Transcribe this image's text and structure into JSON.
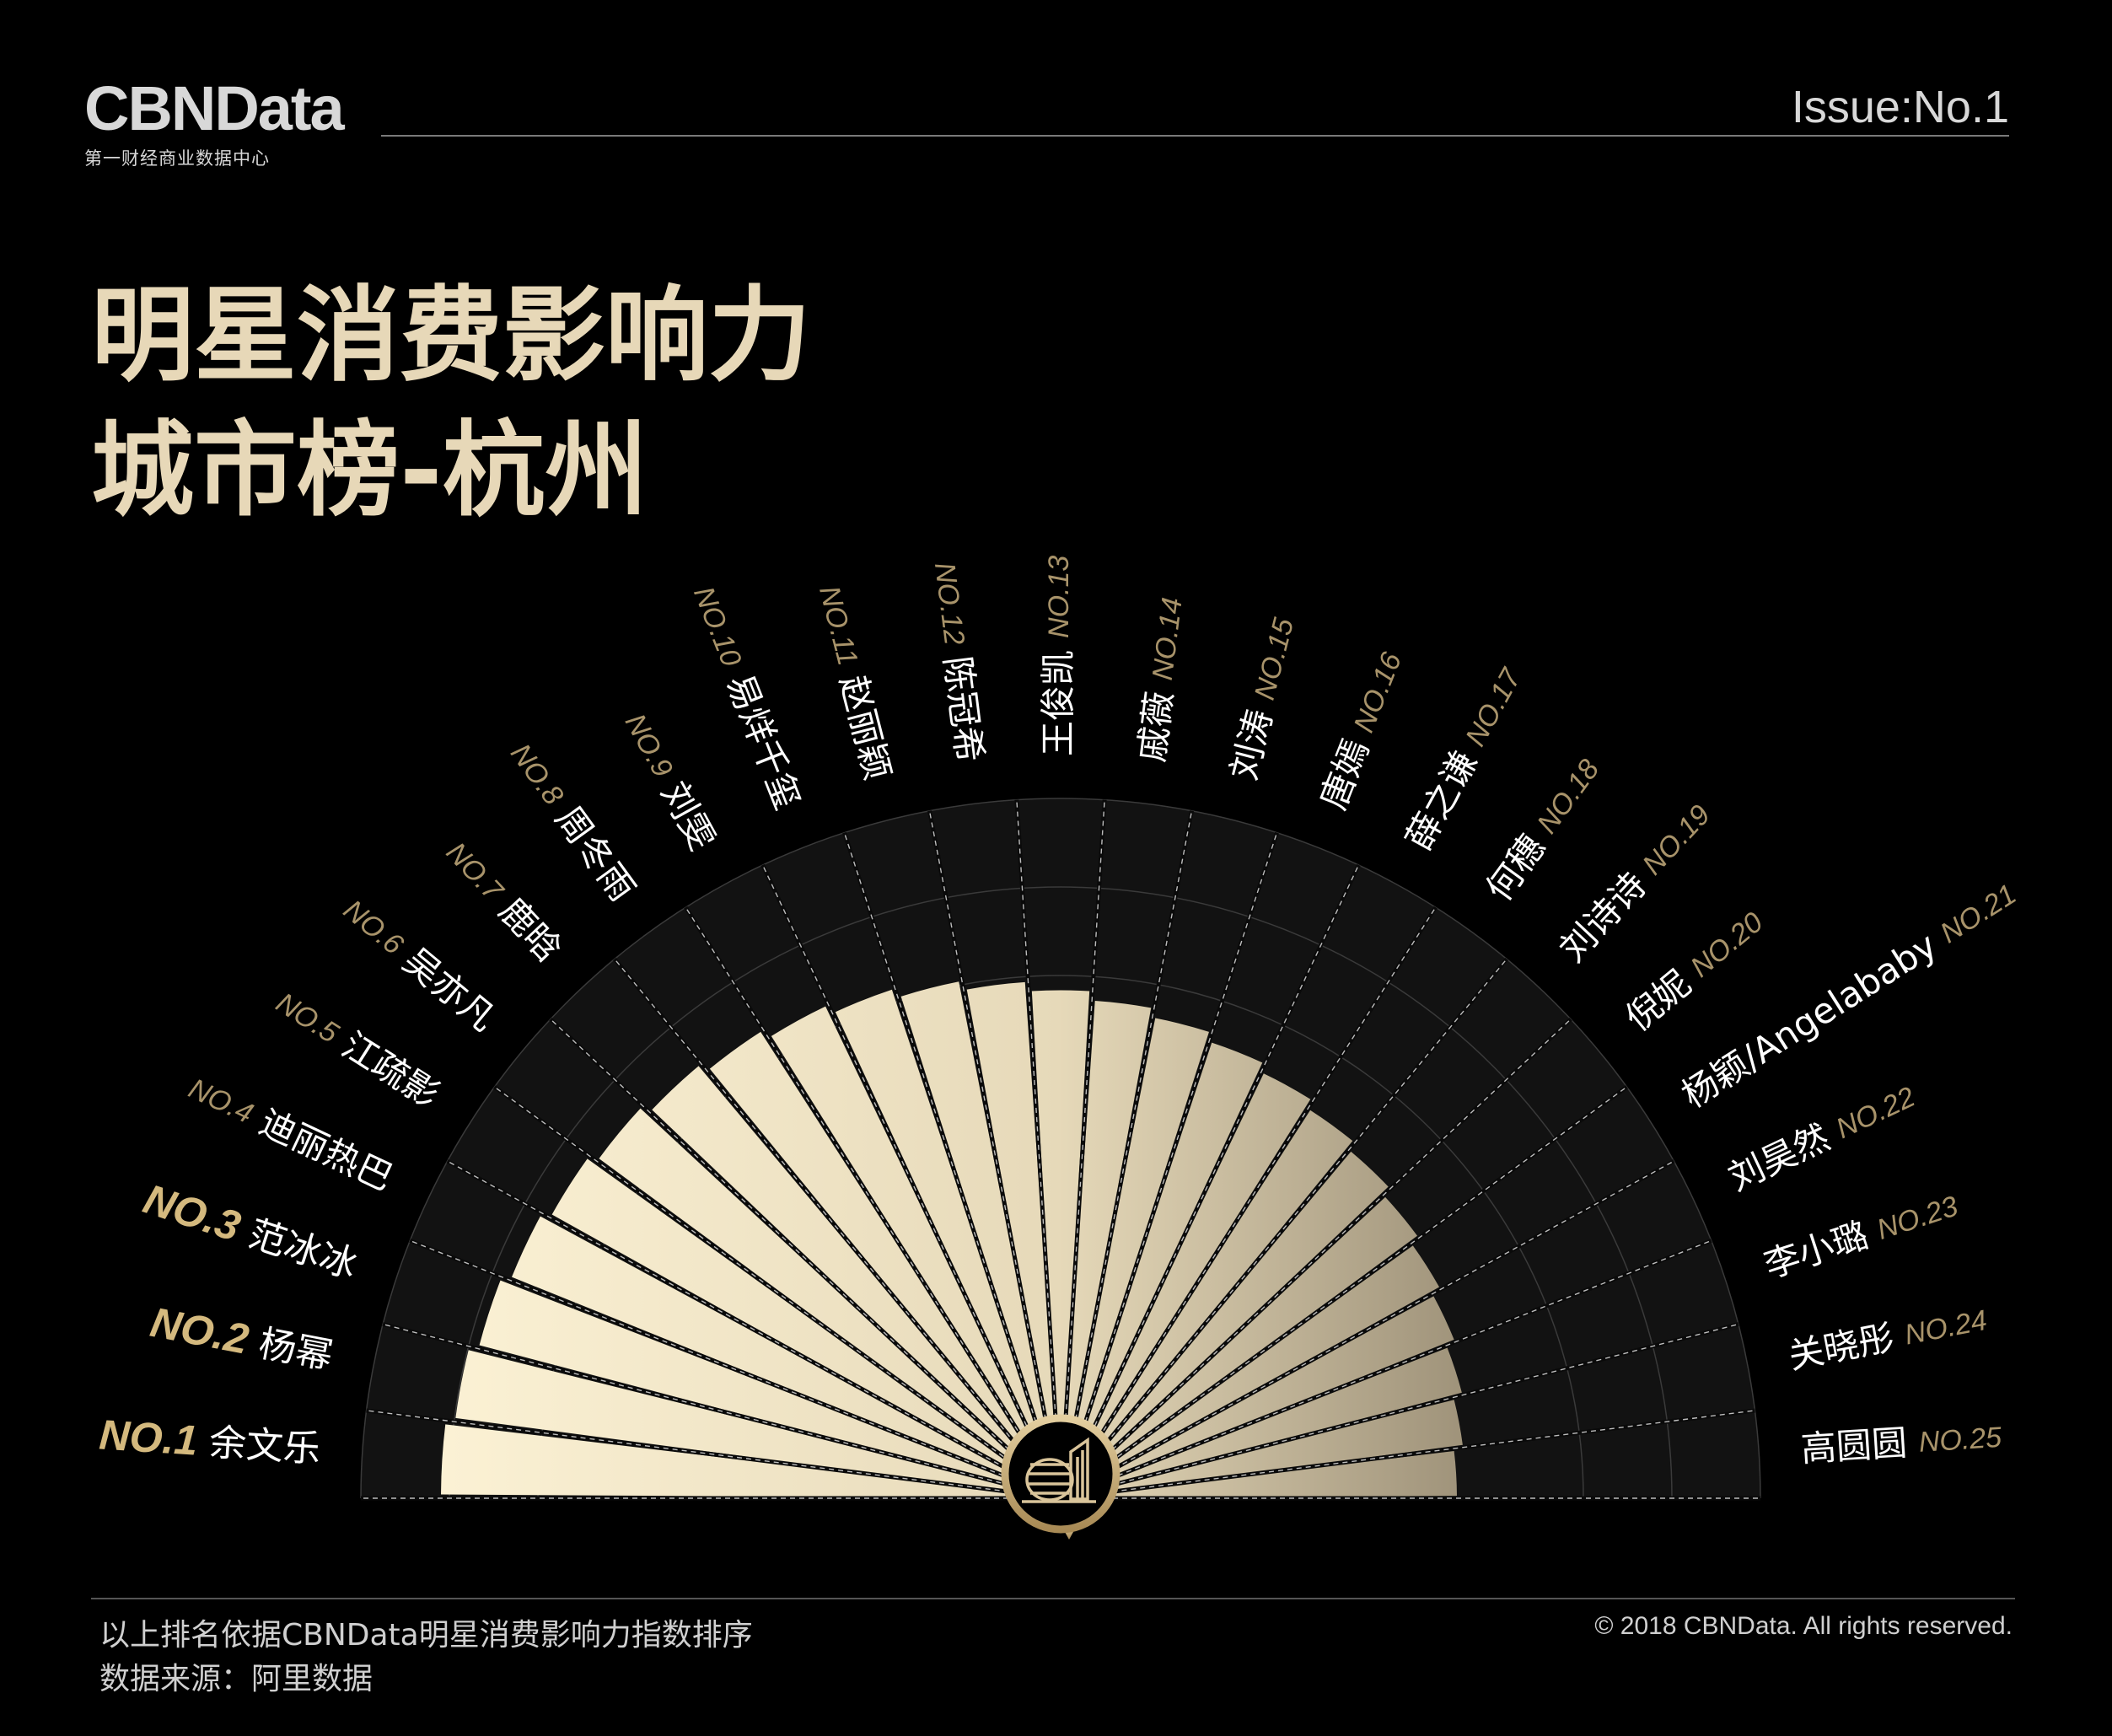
{
  "header": {
    "logo_text": "CBNData",
    "logo_subtitle": "第一财经商业数据中心",
    "issue": "Issue:No.1"
  },
  "title": {
    "line1": "明星消费影响力",
    "line2": "城市榜-杭州"
  },
  "footer": {
    "note": "以上排名依据CBNData明星消费影响力指数排序",
    "source": "数据来源：阿里数据",
    "copyright": "© 2018 CBNData. All rights reserved."
  },
  "center_icon": "hangzhou-landmark-icon",
  "colors": {
    "background": "#000000",
    "accent_gold": "#c9b084",
    "title_gold": "#e7d8b8",
    "bar_light": "#fbf1d4",
    "bar_dark": "#8e826b"
  },
  "chart_data": {
    "type": "bar",
    "layout": "radial-semicircle",
    "ranks": [
      "NO.1",
      "NO.2",
      "NO.3",
      "NO.4",
      "NO.5",
      "NO.6",
      "NO.7",
      "NO.8",
      "NO.9",
      "NO.10",
      "NO.11",
      "NO.12",
      "NO.13",
      "NO.14",
      "NO.15",
      "NO.16",
      "NO.17",
      "NO.18",
      "NO.19",
      "NO.20",
      "NO.21",
      "NO.22",
      "NO.23",
      "NO.24",
      "NO.25"
    ],
    "categories": [
      "余文乐",
      "杨幂",
      "范冰冰",
      "迪丽热巴",
      "江疏影",
      "吴亦凡",
      "鹿晗",
      "周冬雨",
      "刘雯",
      "易烊千玺",
      "赵丽颖",
      "陈冠希",
      "王俊凯",
      "戚薇",
      "刘涛",
      "唐嫣",
      "薛之谦",
      "何穗",
      "刘诗诗",
      "倪妮",
      "杨颖/Angelababy",
      "刘昊然",
      "李小璐",
      "关晓彤",
      "高圆圆"
    ],
    "values": [
      100,
      97,
      94,
      91,
      88,
      85,
      82,
      79,
      76,
      73,
      70,
      67,
      64,
      61,
      58,
      55,
      52,
      49,
      46,
      43,
      40,
      37,
      34,
      31,
      28
    ],
    "value_note": "Bars drawn as decreasing relative lengths; no numeric values printed",
    "grid": true
  }
}
